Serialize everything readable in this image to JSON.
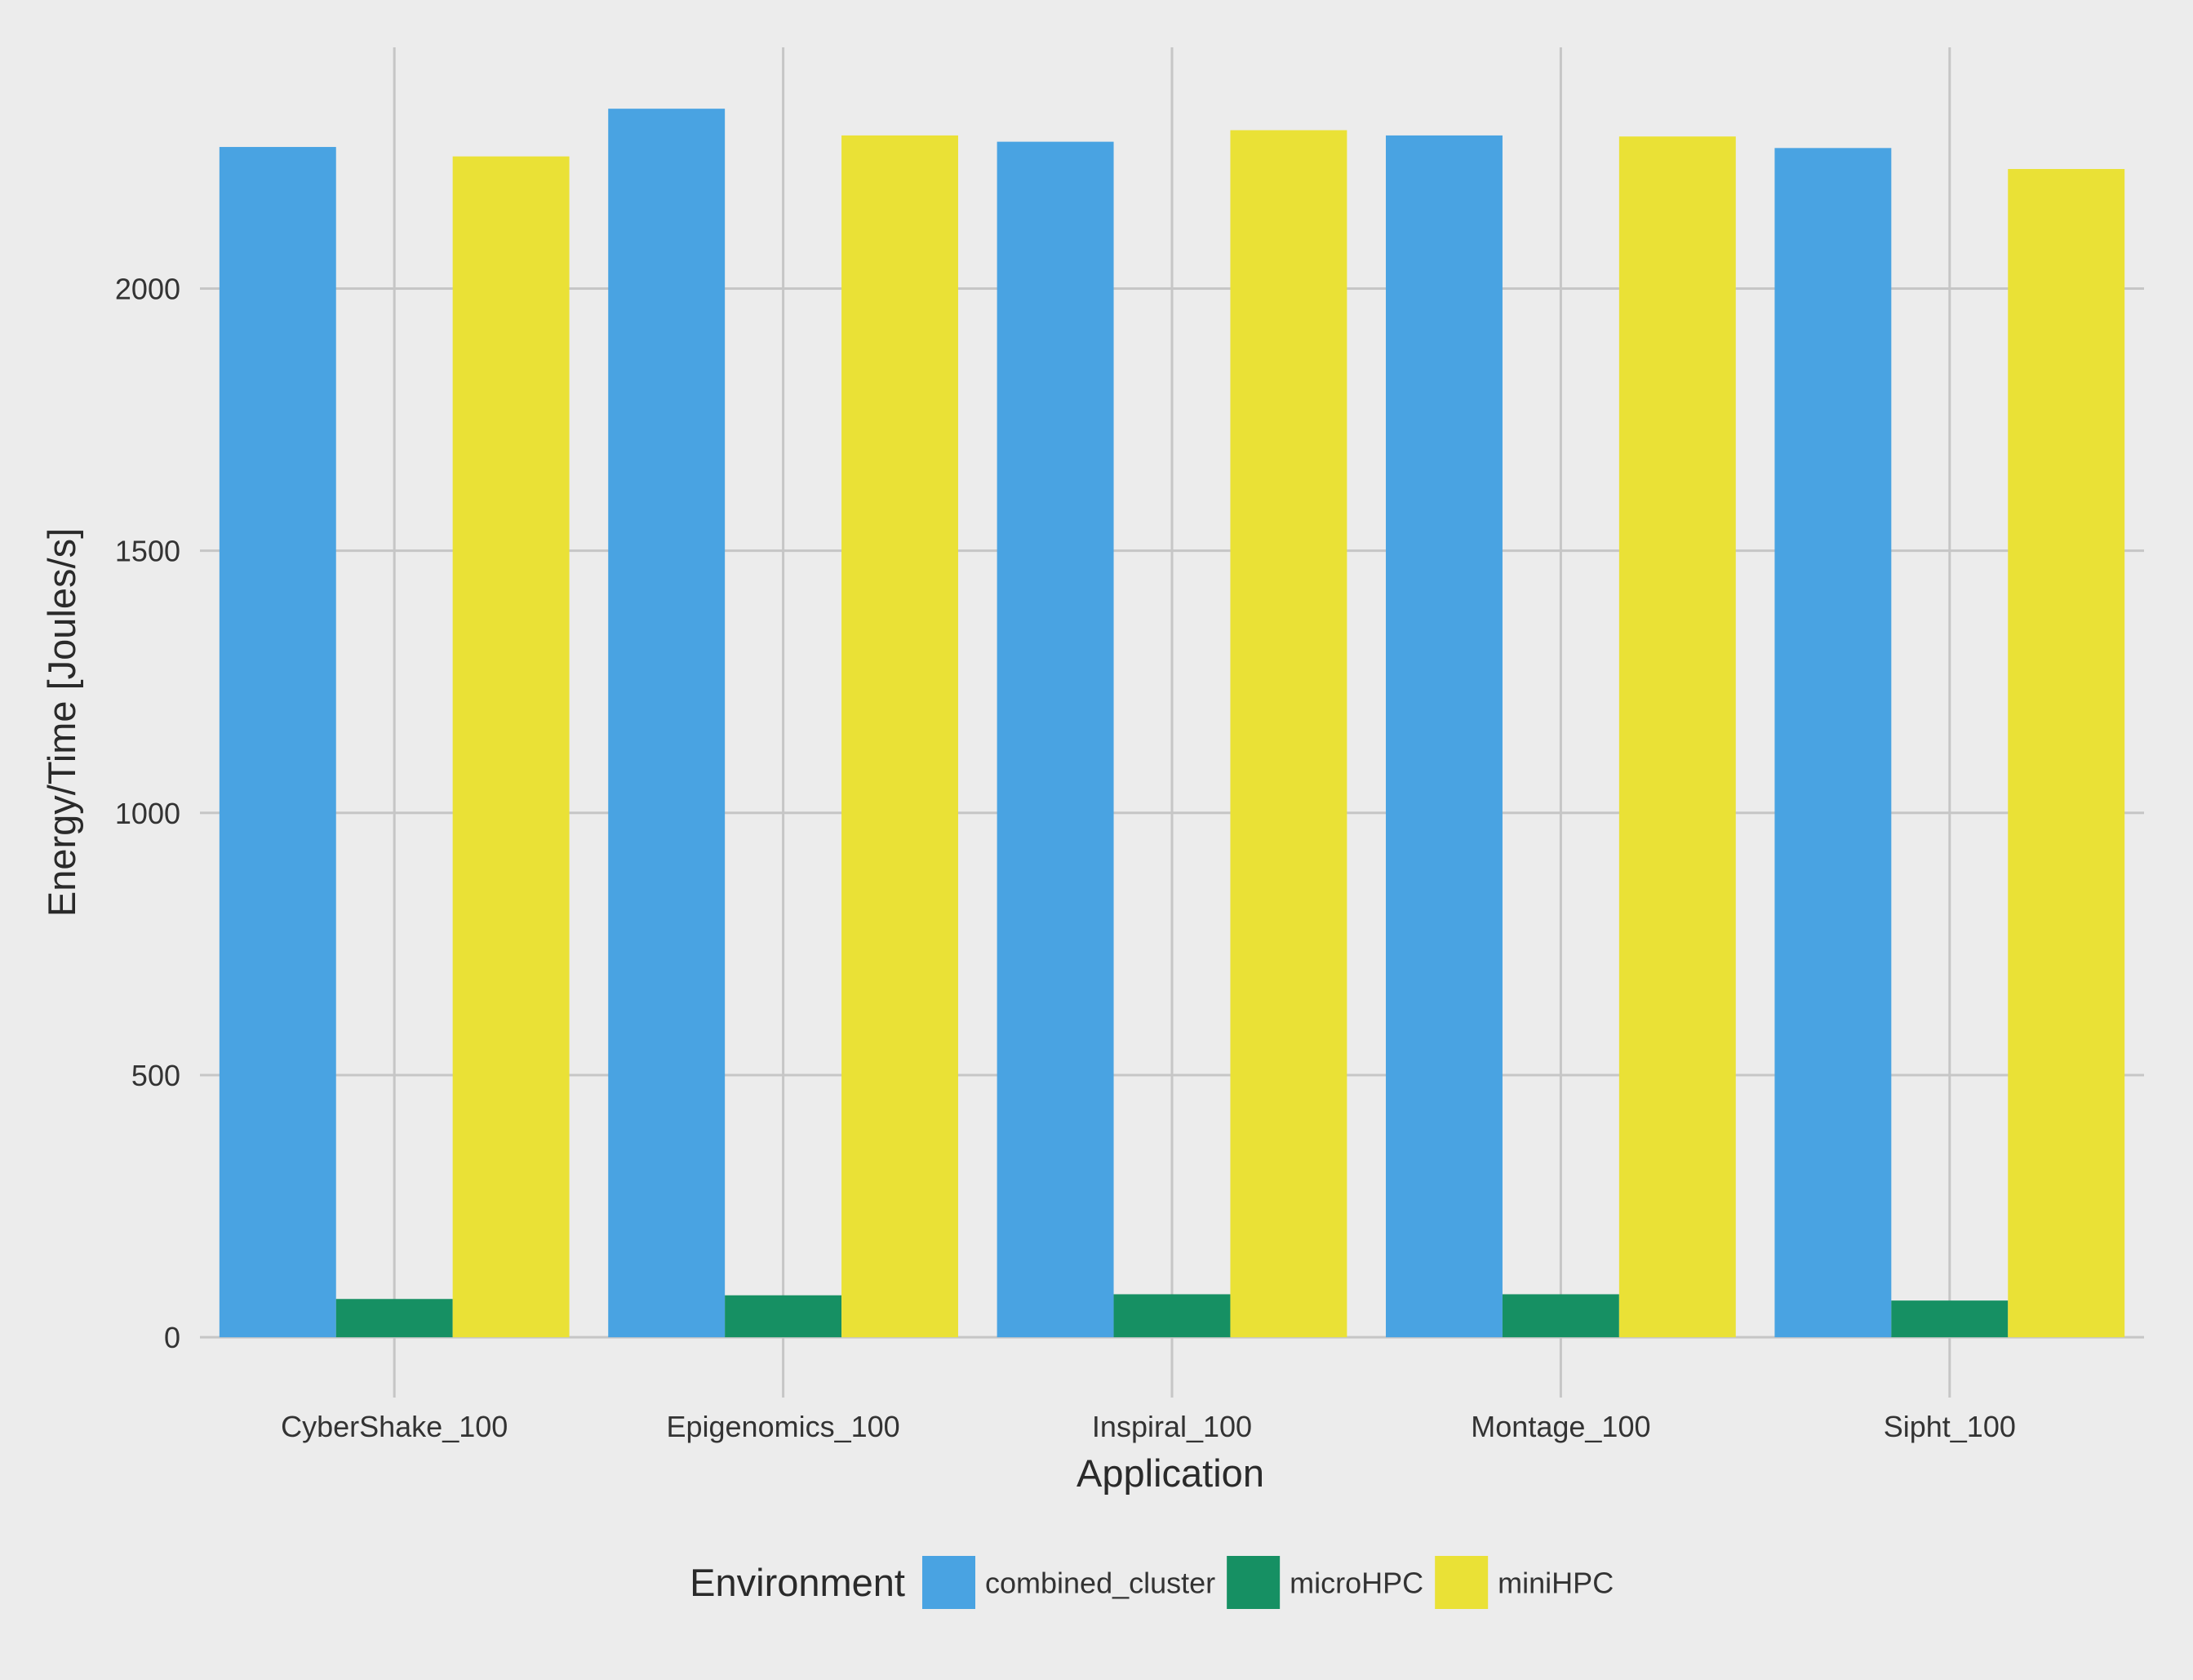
{
  "chart_data": {
    "type": "bar",
    "title": "",
    "xlabel": "Application",
    "ylabel": "Energy/Time [Joules/s]",
    "categories": [
      "CyberShake_100",
      "Epigenomics_100",
      "Inspiral_100",
      "Montage_100",
      "Sipht_100"
    ],
    "series": [
      {
        "name": "combined_cluster",
        "color": "#49a3e2",
        "values": [
          2270,
          2343,
          2280,
          2292,
          2268
        ]
      },
      {
        "name": "microHPC",
        "color": "#169063",
        "values": [
          73,
          80,
          82,
          82,
          70
        ]
      },
      {
        "name": "miniHPC",
        "color": "#eae136",
        "values": [
          2252,
          2292,
          2302,
          2290,
          2228
        ]
      }
    ],
    "ylim": [
      -115,
      2460
    ],
    "yticks": [
      0,
      500,
      1000,
      1500,
      2000
    ],
    "grid": true,
    "legend": {
      "title": "Environment",
      "position": "bottom"
    }
  }
}
